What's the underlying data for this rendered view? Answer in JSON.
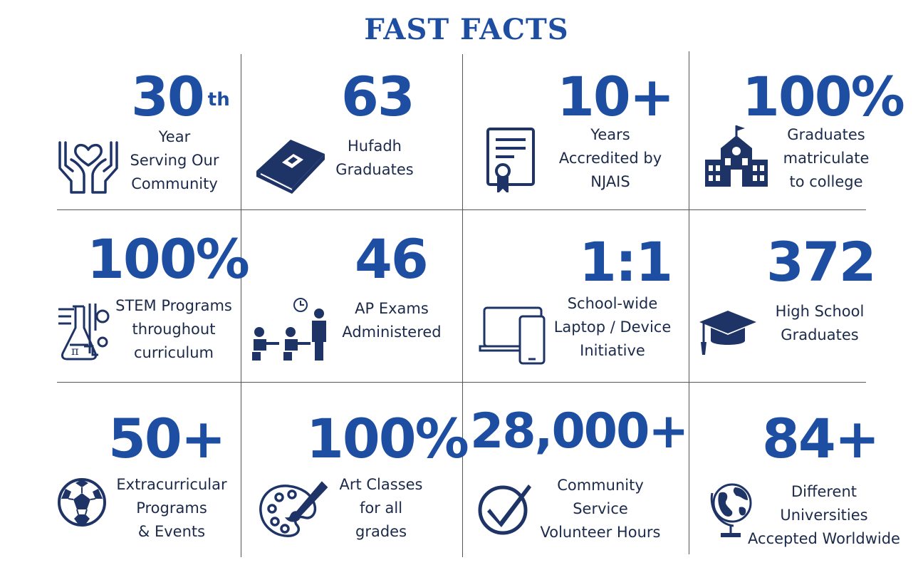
{
  "title": "FAST FACTS",
  "colors": {
    "accent": "#1e4ea1",
    "icon": "#1f3466",
    "text": "#1b2a4a",
    "lines": "#555555"
  },
  "facts": [
    {
      "value": "30",
      "suffix": "th",
      "lines": [
        "Year",
        "Serving Our",
        "Community"
      ],
      "icon": "hands-heart-icon"
    },
    {
      "value": "63",
      "lines": [
        "Hufadh",
        "Graduates"
      ],
      "icon": "quran-book-icon"
    },
    {
      "value": "10+",
      "lines": [
        "Years",
        "Accredited by",
        "NJAIS"
      ],
      "icon": "certificate-icon"
    },
    {
      "value": "100%",
      "lines": [
        "Graduates",
        "matriculate",
        "to college"
      ],
      "icon": "school-building-icon"
    },
    {
      "value": "100%",
      "lines": [
        "STEM Programs",
        "throughout",
        "curriculum"
      ],
      "icon": "stem-lab-icon"
    },
    {
      "value": "46",
      "lines": [
        "AP Exams",
        "Administered"
      ],
      "icon": "exam-room-icon"
    },
    {
      "value": "1:1",
      "lines": [
        "School-wide",
        "Laptop / Device",
        "Initiative"
      ],
      "icon": "laptop-phone-icon"
    },
    {
      "value": "372",
      "lines": [
        "High School",
        "Graduates"
      ],
      "icon": "graduation-cap-icon"
    },
    {
      "value": "50+",
      "lines": [
        "Extracurricular",
        "Programs",
        "& Events"
      ],
      "icon": "soccer-ball-icon"
    },
    {
      "value": "100%",
      "lines": [
        "Art Classes",
        "for all",
        "grades"
      ],
      "icon": "art-palette-icon"
    },
    {
      "value": "28,000+",
      "lines": [
        "Community",
        "Service",
        "Volunteer Hours"
      ],
      "icon": "checkmark-circle-icon"
    },
    {
      "value": "84+",
      "lines": [
        "Different",
        "Universities",
        "Accepted  Worldwide"
      ],
      "icon": "globe-icon"
    }
  ]
}
